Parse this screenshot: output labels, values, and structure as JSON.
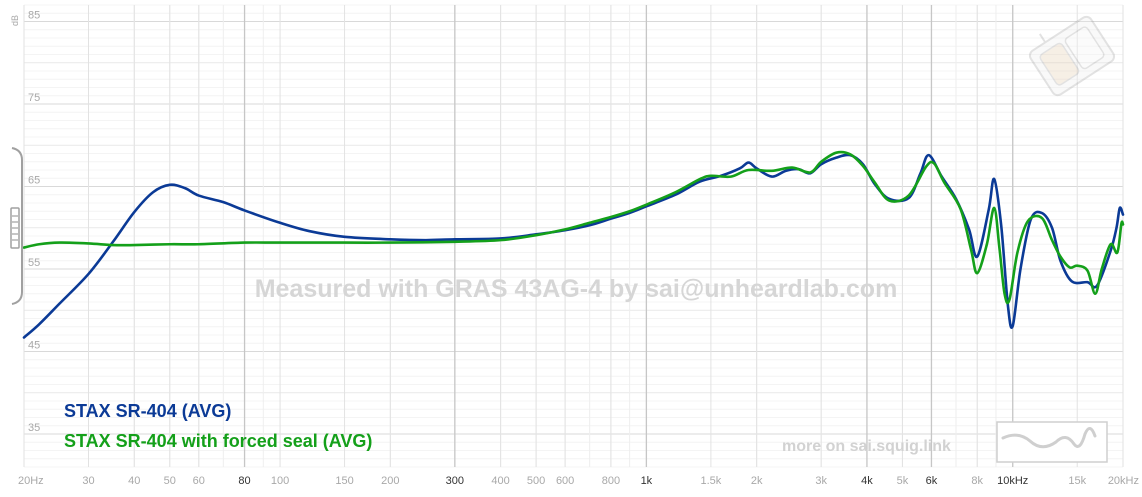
{
  "chart_data": {
    "type": "line",
    "x_scale": "log",
    "xlim": [
      20,
      20000
    ],
    "ylim": [
      31,
      87
    ],
    "grid": true,
    "y_unit": "dB",
    "y_ticks": [
      85,
      75,
      65,
      55,
      45,
      35
    ],
    "x_ticks": [
      {
        "v": 20,
        "label": "20Hz",
        "dark": false
      },
      {
        "v": 30,
        "label": "30",
        "dark": false
      },
      {
        "v": 40,
        "label": "40",
        "dark": false
      },
      {
        "v": 50,
        "label": "50",
        "dark": false
      },
      {
        "v": 60,
        "label": "60",
        "dark": false
      },
      {
        "v": 80,
        "label": "80",
        "dark": true
      },
      {
        "v": 100,
        "label": "100",
        "dark": false
      },
      {
        "v": 150,
        "label": "150",
        "dark": false
      },
      {
        "v": 200,
        "label": "200",
        "dark": false
      },
      {
        "v": 300,
        "label": "300",
        "dark": true
      },
      {
        "v": 400,
        "label": "400",
        "dark": false
      },
      {
        "v": 500,
        "label": "500",
        "dark": false
      },
      {
        "v": 600,
        "label": "600",
        "dark": false
      },
      {
        "v": 800,
        "label": "800",
        "dark": false
      },
      {
        "v": 1000,
        "label": "1k",
        "dark": true
      },
      {
        "v": 1500,
        "label": "1.5k",
        "dark": false
      },
      {
        "v": 2000,
        "label": "2k",
        "dark": false
      },
      {
        "v": 3000,
        "label": "3k",
        "dark": false
      },
      {
        "v": 4000,
        "label": "4k",
        "dark": true
      },
      {
        "v": 5000,
        "label": "5k",
        "dark": false
      },
      {
        "v": 6000,
        "label": "6k",
        "dark": true
      },
      {
        "v": 8000,
        "label": "8k",
        "dark": false
      },
      {
        "v": 10000,
        "label": "10kHz",
        "dark": true
      },
      {
        "v": 15000,
        "label": "15k",
        "dark": false
      },
      {
        "v": 20000,
        "label": "20kHz",
        "dark": false
      }
    ],
    "series": [
      {
        "name": "STAX SR-404 (AVG)",
        "color": "#0b3a96",
        "points": [
          [
            20,
            46.7
          ],
          [
            22,
            48.3
          ],
          [
            25,
            50.8
          ],
          [
            30,
            54.4
          ],
          [
            35,
            58.3
          ],
          [
            40,
            61.9
          ],
          [
            45,
            64.3
          ],
          [
            50,
            65.2
          ],
          [
            55,
            64.8
          ],
          [
            60,
            63.9
          ],
          [
            70,
            63.1
          ],
          [
            80,
            62.1
          ],
          [
            100,
            60.6
          ],
          [
            120,
            59.6
          ],
          [
            150,
            58.9
          ],
          [
            200,
            58.6
          ],
          [
            250,
            58.5
          ],
          [
            300,
            58.6
          ],
          [
            400,
            58.7
          ],
          [
            500,
            59.2
          ],
          [
            600,
            59.7
          ],
          [
            700,
            60.3
          ],
          [
            800,
            61.1
          ],
          [
            900,
            61.8
          ],
          [
            1000,
            62.6
          ],
          [
            1200,
            64.0
          ],
          [
            1400,
            65.6
          ],
          [
            1600,
            66.3
          ],
          [
            1800,
            67.2
          ],
          [
            1900,
            67.9
          ],
          [
            2000,
            67.2
          ],
          [
            2200,
            66.2
          ],
          [
            2400,
            66.9
          ],
          [
            2600,
            67.1
          ],
          [
            2800,
            66.6
          ],
          [
            3000,
            67.7
          ],
          [
            3300,
            68.5
          ],
          [
            3600,
            68.8
          ],
          [
            3900,
            67.7
          ],
          [
            4200,
            65.3
          ],
          [
            4600,
            63.5
          ],
          [
            5200,
            63.6
          ],
          [
            5600,
            66.6
          ],
          [
            5900,
            68.8
          ],
          [
            6400,
            66.2
          ],
          [
            7000,
            63.5
          ],
          [
            7600,
            59.8
          ],
          [
            8000,
            56.5
          ],
          [
            8600,
            62.2
          ],
          [
            8900,
            65.9
          ],
          [
            9300,
            60.3
          ],
          [
            9700,
            50.6
          ],
          [
            10000,
            48.1
          ],
          [
            10500,
            55.0
          ],
          [
            11200,
            61.0
          ],
          [
            12000,
            61.8
          ],
          [
            12800,
            60.0
          ],
          [
            13500,
            56.0
          ],
          [
            14500,
            53.5
          ],
          [
            16000,
            53.4
          ],
          [
            17000,
            53.0
          ],
          [
            18500,
            57.2
          ],
          [
            19200,
            60.0
          ],
          [
            19600,
            62.4
          ],
          [
            20000,
            61.6
          ]
        ]
      },
      {
        "name": "STAX SR-404 with forced seal (AVG)",
        "color": "#14a01a",
        "points": [
          [
            20,
            57.6
          ],
          [
            22,
            58.0
          ],
          [
            25,
            58.2
          ],
          [
            30,
            58.1
          ],
          [
            35,
            57.9
          ],
          [
            40,
            57.9
          ],
          [
            50,
            58.0
          ],
          [
            60,
            58.0
          ],
          [
            80,
            58.2
          ],
          [
            100,
            58.2
          ],
          [
            150,
            58.2
          ],
          [
            200,
            58.2
          ],
          [
            300,
            58.3
          ],
          [
            400,
            58.5
          ],
          [
            500,
            59.1
          ],
          [
            600,
            59.8
          ],
          [
            700,
            60.6
          ],
          [
            800,
            61.3
          ],
          [
            900,
            62.0
          ],
          [
            1000,
            62.8
          ],
          [
            1200,
            64.3
          ],
          [
            1400,
            65.9
          ],
          [
            1500,
            66.3
          ],
          [
            1700,
            66.2
          ],
          [
            1900,
            67.0
          ],
          [
            2200,
            66.9
          ],
          [
            2500,
            67.3
          ],
          [
            2800,
            66.7
          ],
          [
            3000,
            68.0
          ],
          [
            3300,
            69.1
          ],
          [
            3600,
            68.9
          ],
          [
            3900,
            67.5
          ],
          [
            4200,
            65.5
          ],
          [
            4600,
            63.3
          ],
          [
            5200,
            63.9
          ],
          [
            5800,
            67.4
          ],
          [
            6100,
            67.8
          ],
          [
            6500,
            65.5
          ],
          [
            7200,
            62.3
          ],
          [
            7700,
            57.3
          ],
          [
            8000,
            54.5
          ],
          [
            8500,
            58.0
          ],
          [
            8900,
            62.4
          ],
          [
            9200,
            57.5
          ],
          [
            9500,
            52.0
          ],
          [
            9800,
            51.3
          ],
          [
            10300,
            57.0
          ],
          [
            11000,
            60.8
          ],
          [
            12000,
            61.2
          ],
          [
            12800,
            58.5
          ],
          [
            13500,
            56.5
          ],
          [
            14300,
            55.2
          ],
          [
            15000,
            55.4
          ],
          [
            16000,
            54.8
          ],
          [
            16800,
            52.0
          ],
          [
            17500,
            55.0
          ],
          [
            18500,
            58.0
          ],
          [
            19300,
            57.0
          ],
          [
            19800,
            60.5
          ],
          [
            20000,
            60.4
          ]
        ]
      }
    ],
    "legend_placement": "bottom-left"
  },
  "watermark": "Measured with GRAS 43AG-4 by sai@unheardlab.com",
  "footer_link": "more on sai.squig.link"
}
